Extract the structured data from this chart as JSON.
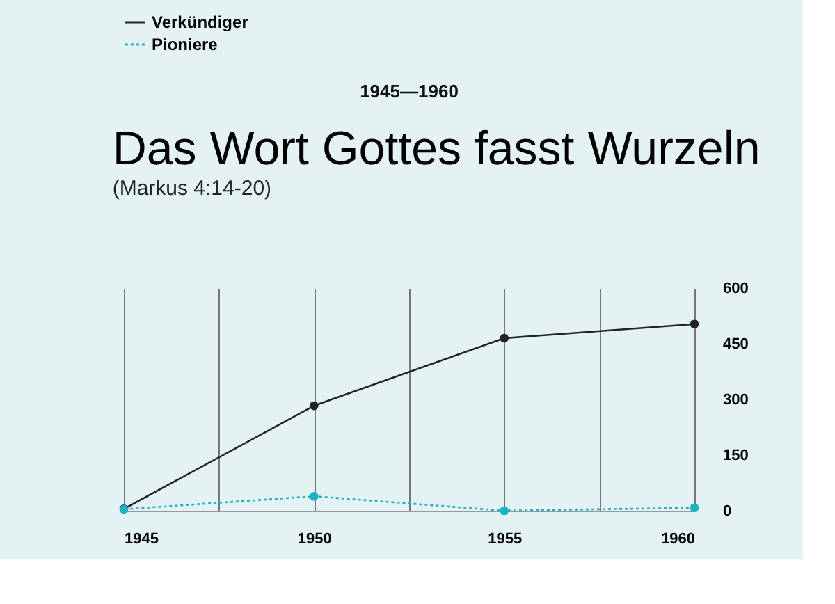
{
  "chart_data": {
    "type": "line",
    "title": "Das Wort Gottes fasst Wurzeln",
    "subtitle": "(Markus 4:14-20)",
    "annotations": [
      "1945—1960"
    ],
    "x": [
      1945,
      1950,
      1955,
      1960
    ],
    "series": [
      {
        "name": "Verkündiger",
        "color": "#222222",
        "values": [
          5,
          283,
          465,
          503
        ],
        "line_style": "solid"
      },
      {
        "name": "Pioniere",
        "color": "#1bb3c4",
        "values": [
          4,
          39,
          0,
          8
        ],
        "line_style": "dotted"
      }
    ],
    "xlim": [
      1945,
      1960
    ],
    "xticks": [
      1945,
      {
        "value": 1947.5,
        "label": null
      },
      1950,
      {
        "value": 1952.5,
        "label": null
      },
      1955,
      {
        "value": 1957.5,
        "label": null
      },
      1960
    ],
    "ylim": [
      0,
      600
    ],
    "yticks": [
      0,
      150,
      300,
      450,
      600
    ],
    "grid": "x",
    "legend": "top left",
    "marker": "circle"
  }
}
